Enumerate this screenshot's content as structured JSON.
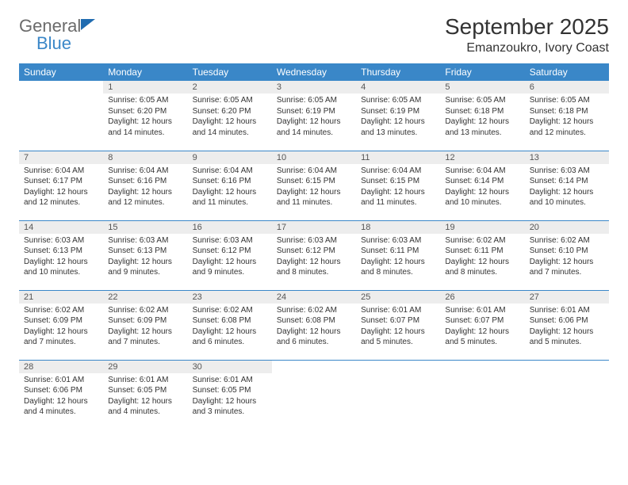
{
  "brand": {
    "word1": "General",
    "word2": "Blue"
  },
  "title": "September 2025",
  "location": "Emanzoukro, Ivory Coast",
  "theme": {
    "header_bg": "#3a87c8",
    "header_fg": "#ffffff",
    "daynum_bg": "#ededed",
    "rule_color": "#3a87c8",
    "body_text": "#333333",
    "title_fontsize_pt": 21,
    "location_fontsize_pt": 12,
    "dayheader_fontsize_pt": 9,
    "body_fontsize_pt": 7.5
  },
  "day_headers": [
    "Sunday",
    "Monday",
    "Tuesday",
    "Wednesday",
    "Thursday",
    "Friday",
    "Saturday"
  ],
  "weeks": [
    [
      null,
      {
        "n": "1",
        "sr": "Sunrise: 6:05 AM",
        "ss": "Sunset: 6:20 PM",
        "dl": "Daylight: 12 hours and 14 minutes."
      },
      {
        "n": "2",
        "sr": "Sunrise: 6:05 AM",
        "ss": "Sunset: 6:20 PM",
        "dl": "Daylight: 12 hours and 14 minutes."
      },
      {
        "n": "3",
        "sr": "Sunrise: 6:05 AM",
        "ss": "Sunset: 6:19 PM",
        "dl": "Daylight: 12 hours and 14 minutes."
      },
      {
        "n": "4",
        "sr": "Sunrise: 6:05 AM",
        "ss": "Sunset: 6:19 PM",
        "dl": "Daylight: 12 hours and 13 minutes."
      },
      {
        "n": "5",
        "sr": "Sunrise: 6:05 AM",
        "ss": "Sunset: 6:18 PM",
        "dl": "Daylight: 12 hours and 13 minutes."
      },
      {
        "n": "6",
        "sr": "Sunrise: 6:05 AM",
        "ss": "Sunset: 6:18 PM",
        "dl": "Daylight: 12 hours and 12 minutes."
      }
    ],
    [
      {
        "n": "7",
        "sr": "Sunrise: 6:04 AM",
        "ss": "Sunset: 6:17 PM",
        "dl": "Daylight: 12 hours and 12 minutes."
      },
      {
        "n": "8",
        "sr": "Sunrise: 6:04 AM",
        "ss": "Sunset: 6:16 PM",
        "dl": "Daylight: 12 hours and 12 minutes."
      },
      {
        "n": "9",
        "sr": "Sunrise: 6:04 AM",
        "ss": "Sunset: 6:16 PM",
        "dl": "Daylight: 12 hours and 11 minutes."
      },
      {
        "n": "10",
        "sr": "Sunrise: 6:04 AM",
        "ss": "Sunset: 6:15 PM",
        "dl": "Daylight: 12 hours and 11 minutes."
      },
      {
        "n": "11",
        "sr": "Sunrise: 6:04 AM",
        "ss": "Sunset: 6:15 PM",
        "dl": "Daylight: 12 hours and 11 minutes."
      },
      {
        "n": "12",
        "sr": "Sunrise: 6:04 AM",
        "ss": "Sunset: 6:14 PM",
        "dl": "Daylight: 12 hours and 10 minutes."
      },
      {
        "n": "13",
        "sr": "Sunrise: 6:03 AM",
        "ss": "Sunset: 6:14 PM",
        "dl": "Daylight: 12 hours and 10 minutes."
      }
    ],
    [
      {
        "n": "14",
        "sr": "Sunrise: 6:03 AM",
        "ss": "Sunset: 6:13 PM",
        "dl": "Daylight: 12 hours and 10 minutes."
      },
      {
        "n": "15",
        "sr": "Sunrise: 6:03 AM",
        "ss": "Sunset: 6:13 PM",
        "dl": "Daylight: 12 hours and 9 minutes."
      },
      {
        "n": "16",
        "sr": "Sunrise: 6:03 AM",
        "ss": "Sunset: 6:12 PM",
        "dl": "Daylight: 12 hours and 9 minutes."
      },
      {
        "n": "17",
        "sr": "Sunrise: 6:03 AM",
        "ss": "Sunset: 6:12 PM",
        "dl": "Daylight: 12 hours and 8 minutes."
      },
      {
        "n": "18",
        "sr": "Sunrise: 6:03 AM",
        "ss": "Sunset: 6:11 PM",
        "dl": "Daylight: 12 hours and 8 minutes."
      },
      {
        "n": "19",
        "sr": "Sunrise: 6:02 AM",
        "ss": "Sunset: 6:11 PM",
        "dl": "Daylight: 12 hours and 8 minutes."
      },
      {
        "n": "20",
        "sr": "Sunrise: 6:02 AM",
        "ss": "Sunset: 6:10 PM",
        "dl": "Daylight: 12 hours and 7 minutes."
      }
    ],
    [
      {
        "n": "21",
        "sr": "Sunrise: 6:02 AM",
        "ss": "Sunset: 6:09 PM",
        "dl": "Daylight: 12 hours and 7 minutes."
      },
      {
        "n": "22",
        "sr": "Sunrise: 6:02 AM",
        "ss": "Sunset: 6:09 PM",
        "dl": "Daylight: 12 hours and 7 minutes."
      },
      {
        "n": "23",
        "sr": "Sunrise: 6:02 AM",
        "ss": "Sunset: 6:08 PM",
        "dl": "Daylight: 12 hours and 6 minutes."
      },
      {
        "n": "24",
        "sr": "Sunrise: 6:02 AM",
        "ss": "Sunset: 6:08 PM",
        "dl": "Daylight: 12 hours and 6 minutes."
      },
      {
        "n": "25",
        "sr": "Sunrise: 6:01 AM",
        "ss": "Sunset: 6:07 PM",
        "dl": "Daylight: 12 hours and 5 minutes."
      },
      {
        "n": "26",
        "sr": "Sunrise: 6:01 AM",
        "ss": "Sunset: 6:07 PM",
        "dl": "Daylight: 12 hours and 5 minutes."
      },
      {
        "n": "27",
        "sr": "Sunrise: 6:01 AM",
        "ss": "Sunset: 6:06 PM",
        "dl": "Daylight: 12 hours and 5 minutes."
      }
    ],
    [
      {
        "n": "28",
        "sr": "Sunrise: 6:01 AM",
        "ss": "Sunset: 6:06 PM",
        "dl": "Daylight: 12 hours and 4 minutes."
      },
      {
        "n": "29",
        "sr": "Sunrise: 6:01 AM",
        "ss": "Sunset: 6:05 PM",
        "dl": "Daylight: 12 hours and 4 minutes."
      },
      {
        "n": "30",
        "sr": "Sunrise: 6:01 AM",
        "ss": "Sunset: 6:05 PM",
        "dl": "Daylight: 12 hours and 3 minutes."
      },
      null,
      null,
      null,
      null
    ]
  ]
}
